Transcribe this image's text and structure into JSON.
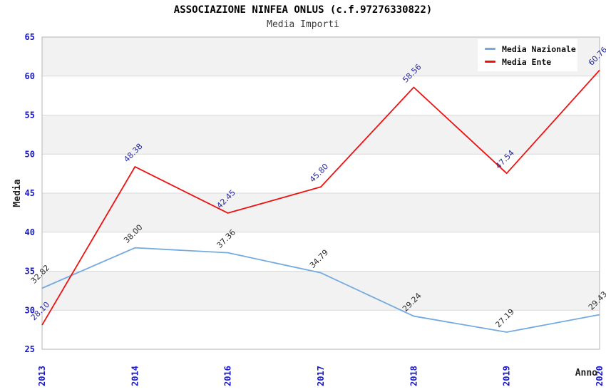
{
  "header": {
    "title": "ASSOCIAZIONE NINFEA ONLUS (c.f.97276330822)",
    "subtitle": "Media Importi"
  },
  "chart_data": {
    "type": "line",
    "title": "ASSOCIAZIONE NINFEA ONLUS (c.f.97276330822)",
    "subtitle": "Media Importi",
    "categories": [
      "2013",
      "2014",
      "2016",
      "2017",
      "2018",
      "2019",
      "2020"
    ],
    "series": [
      {
        "name": "Media Nazionale",
        "color": "#74aade",
        "label_color": "#2b2b2b",
        "values": [
          32.82,
          38.0,
          37.36,
          34.79,
          29.24,
          27.19,
          29.43
        ]
      },
      {
        "name": "Media Ente",
        "color": "#ee1111",
        "label_color": "#26269c",
        "values": [
          28.1,
          48.38,
          42.45,
          45.8,
          58.56,
          47.54,
          60.76
        ]
      }
    ],
    "xlabel": "Anno",
    "ylabel": "Media",
    "ylim": [
      25,
      65
    ],
    "ytick_step": 5,
    "yticks": [
      25,
      30,
      35,
      40,
      45,
      50,
      55,
      60,
      65
    ],
    "legend_position": "top-right",
    "grid": "horizontal-bands",
    "band_color": "#f2f2f2",
    "gridline_color": "#d9d9d9",
    "border_color": "#b6b6b6",
    "tick_label_color": "#1717ce"
  }
}
